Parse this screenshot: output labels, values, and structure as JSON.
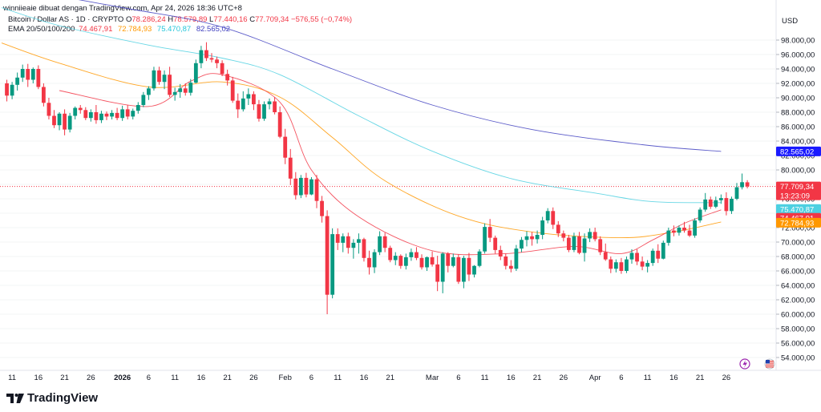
{
  "header": {
    "watermark": "winniieaie dibuat dengan TradingView.com, Apr 24, 2026 18:36 UTC+8",
    "symbol": "Bitcoin / Dollar AS · 1D · CRYPTO",
    "open_label": "O",
    "open": "78.286,24",
    "high_label": "H",
    "high": "78.579,89",
    "low_label": "L",
    "low": "77.440,16",
    "close_label": "C",
    "close": "77.709,34",
    "change": "−576,55 (−0,74%)",
    "ema_label": "EMA 20/50/100/200",
    "ema20": "74.467,91",
    "ema50": "72.784,93",
    "ema100": "75.470,87",
    "ema200": "82.565,02"
  },
  "currency": "USD",
  "footer": {
    "brand": "TradingView"
  },
  "colors": {
    "up": "#089981",
    "down": "#f23645",
    "ema20": "#f23645",
    "ema50": "#ff9800",
    "ema100": "#4dd0e1",
    "ema200": "#3f3fbf",
    "ema200_tag": "#1a1aff"
  },
  "price_tags": {
    "last_price": "77.709,34",
    "countdown": "13:23:09",
    "ema100": "75.470,87",
    "ema20": "74.467,91",
    "ema50": "72.784,93",
    "ema200": "82.565,02"
  },
  "chart_data": {
    "type": "candlestick",
    "title": "Bitcoin / Dollar AS · 1D · CRYPTO",
    "interval": "1D",
    "y_axis": {
      "unit": "USD",
      "range": [
        52000,
        100000
      ],
      "ticks": [
        54000,
        56000,
        58000,
        60000,
        62000,
        64000,
        66000,
        68000,
        70000,
        72000,
        74000,
        76000,
        78000,
        80000,
        82000,
        84000,
        86000,
        88000,
        90000,
        92000,
        94000,
        96000,
        98000
      ],
      "tick_labels": [
        "54.000,00",
        "56.000,00",
        "58.000,00",
        "60.000,00",
        "62.000,00",
        "64.000,00",
        "66.000,00",
        "68.000,00",
        "70.000,00",
        "72.000,00",
        "74.000,00",
        "76.000,00",
        "78.000,00",
        "80.000,00",
        "82.000,00",
        "84.000,00",
        "86.000,00",
        "88.000,00",
        "90.000,00",
        "92.000,00",
        "94.000,00",
        "96.000,00",
        "98.000,00"
      ]
    },
    "x_axis": {
      "first_date": "2025-12-09",
      "last_date": "2026-04-26",
      "ticks": [
        {
          "date": "2025-12-11",
          "label": "11"
        },
        {
          "date": "2025-12-16",
          "label": "16"
        },
        {
          "date": "2025-12-21",
          "label": "21"
        },
        {
          "date": "2025-12-26",
          "label": "26"
        },
        {
          "date": "2026-01-01",
          "label": "2026",
          "bold": true
        },
        {
          "date": "2026-01-06",
          "label": "6"
        },
        {
          "date": "2026-01-11",
          "label": "11"
        },
        {
          "date": "2026-01-16",
          "label": "16"
        },
        {
          "date": "2026-01-21",
          "label": "21"
        },
        {
          "date": "2026-01-26",
          "label": "26"
        },
        {
          "date": "2026-02-01",
          "label": "Feb"
        },
        {
          "date": "2026-02-06",
          "label": "6"
        },
        {
          "date": "2026-02-11",
          "label": "11"
        },
        {
          "date": "2026-02-16",
          "label": "16"
        },
        {
          "date": "2026-02-21",
          "label": "21"
        },
        {
          "date": "2026-03-01",
          "label": "Mar"
        },
        {
          "date": "2026-03-06",
          "label": "6"
        },
        {
          "date": "2026-03-11",
          "label": "11"
        },
        {
          "date": "2026-03-16",
          "label": "16"
        },
        {
          "date": "2026-03-21",
          "label": "21"
        },
        {
          "date": "2026-03-26",
          "label": "26"
        },
        {
          "date": "2026-04-01",
          "label": "Apr"
        },
        {
          "date": "2026-04-06",
          "label": "6"
        },
        {
          "date": "2026-04-11",
          "label": "11"
        },
        {
          "date": "2026-04-16",
          "label": "16"
        },
        {
          "date": "2026-04-21",
          "label": "21"
        },
        {
          "date": "2026-04-26",
          "label": "26"
        }
      ]
    },
    "first_candle_date": "2025-12-10",
    "candles_ohlc": [
      [
        92000,
        92500,
        89500,
        90300
      ],
      [
        90300,
        92200,
        89800,
        91800
      ],
      [
        91800,
        93500,
        91000,
        92800
      ],
      [
        92800,
        94600,
        92200,
        94000
      ],
      [
        94000,
        94700,
        91500,
        92500
      ],
      [
        92500,
        94200,
        92000,
        94000
      ],
      [
        94000,
        94500,
        91200,
        91500
      ],
      [
        91500,
        92000,
        88800,
        89300
      ],
      [
        89300,
        90000,
        87000,
        87500
      ],
      [
        87500,
        88300,
        85800,
        86200
      ],
      [
        86200,
        88000,
        85500,
        87800
      ],
      [
        87800,
        88400,
        84800,
        85600
      ],
      [
        85600,
        87900,
        85200,
        87500
      ],
      [
        87500,
        88800,
        87000,
        88600
      ],
      [
        88600,
        89000,
        87800,
        88300
      ],
      [
        88300,
        88700,
        86900,
        87200
      ],
      [
        87200,
        88400,
        86700,
        88000
      ],
      [
        88000,
        89000,
        86400,
        86900
      ],
      [
        86900,
        88200,
        86500,
        87800
      ],
      [
        87800,
        88100,
        86900,
        87400
      ],
      [
        87400,
        88300,
        87000,
        87900
      ],
      [
        87900,
        88600,
        86900,
        87200
      ],
      [
        87200,
        88900,
        86800,
        88400
      ],
      [
        88400,
        89000,
        87000,
        87400
      ],
      [
        87400,
        88500,
        87000,
        88200
      ],
      [
        88200,
        89400,
        87800,
        89000
      ],
      [
        89000,
        90800,
        88700,
        90400
      ],
      [
        90400,
        91600,
        89700,
        91300
      ],
      [
        91300,
        94300,
        91000,
        93800
      ],
      [
        93800,
        94300,
        91800,
        92200
      ],
      [
        92200,
        93800,
        91200,
        93200
      ],
      [
        93200,
        94300,
        90100,
        90400
      ],
      [
        90400,
        91400,
        89600,
        90800
      ],
      [
        90800,
        91900,
        90000,
        91300
      ],
      [
        91300,
        92000,
        90300,
        90700
      ],
      [
        90700,
        92600,
        90300,
        92100
      ],
      [
        92100,
        95300,
        92000,
        94800
      ],
      [
        94800,
        97200,
        94100,
        96600
      ],
      [
        96600,
        97700,
        95100,
        95500
      ],
      [
        95500,
        96200,
        94900,
        95300
      ],
      [
        95300,
        95700,
        94100,
        94800
      ],
      [
        94800,
        95200,
        93000,
        93300
      ],
      [
        93300,
        93900,
        91700,
        92400
      ],
      [
        92400,
        92900,
        89300,
        89600
      ],
      [
        89600,
        90600,
        87200,
        88400
      ],
      [
        88400,
        90900,
        88100,
        89900
      ],
      [
        89900,
        91300,
        89000,
        90500
      ],
      [
        90500,
        90900,
        88300,
        89100
      ],
      [
        89100,
        89700,
        86700,
        87100
      ],
      [
        87100,
        89500,
        86800,
        89100
      ],
      [
        89100,
        89900,
        88400,
        89500
      ],
      [
        89500,
        90100,
        87700,
        88000
      ],
      [
        88000,
        88800,
        84400,
        84600
      ],
      [
        84600,
        85700,
        80800,
        81700
      ],
      [
        81700,
        82900,
        77900,
        78800
      ],
      [
        78800,
        79700,
        75900,
        76500
      ],
      [
        76500,
        79300,
        76100,
        78900
      ],
      [
        78900,
        79600,
        76200,
        76600
      ],
      [
        76600,
        79000,
        76500,
        78700
      ],
      [
        78700,
        79300,
        74700,
        75700
      ],
      [
        75700,
        76400,
        72700,
        73600
      ],
      [
        73600,
        74400,
        60000,
        62700
      ],
      [
        62700,
        71900,
        62200,
        71100
      ],
      [
        71100,
        71900,
        68900,
        69900
      ],
      [
        69900,
        71200,
        68600,
        70800
      ],
      [
        70800,
        71300,
        68400,
        69200
      ],
      [
        69200,
        70400,
        67700,
        69900
      ],
      [
        69900,
        71200,
        68400,
        70400
      ],
      [
        70400,
        70600,
        67300,
        67800
      ],
      [
        67800,
        68800,
        65500,
        66500
      ],
      [
        66500,
        69000,
        65700,
        68600
      ],
      [
        68600,
        71500,
        68200,
        70800
      ],
      [
        70800,
        71300,
        68600,
        69200
      ],
      [
        69200,
        69500,
        67200,
        67500
      ],
      [
        67500,
        68600,
        66800,
        68100
      ],
      [
        68100,
        68300,
        66300,
        66700
      ],
      [
        66700,
        68400,
        66200,
        67900
      ],
      [
        67900,
        69100,
        67400,
        68600
      ],
      [
        68600,
        69300,
        67500,
        67800
      ],
      [
        67800,
        68300,
        66200,
        66500
      ],
      [
        66500,
        68000,
        66000,
        67900
      ],
      [
        67900,
        68700,
        66600,
        66900
      ],
      [
        66900,
        68100,
        63200,
        64500
      ],
      [
        64500,
        68600,
        62900,
        68400
      ],
      [
        68400,
        68600,
        65800,
        66700
      ],
      [
        66700,
        68400,
        66500,
        67900
      ],
      [
        67900,
        68300,
        64200,
        64500
      ],
      [
        64500,
        68100,
        63600,
        67800
      ],
      [
        67800,
        68500,
        64600,
        65500
      ],
      [
        65500,
        66800,
        65100,
        66700
      ],
      [
        66700,
        69000,
        66500,
        68700
      ],
      [
        68700,
        72600,
        68400,
        72100
      ],
      [
        72100,
        73200,
        70000,
        70600
      ],
      [
        70600,
        70900,
        68400,
        68900
      ],
      [
        68900,
        69500,
        67500,
        68000
      ],
      [
        68000,
        68400,
        66200,
        66700
      ],
      [
        66700,
        67500,
        65800,
        66300
      ],
      [
        66300,
        69600,
        66000,
        69100
      ],
      [
        69100,
        70700,
        68600,
        70300
      ],
      [
        70300,
        71500,
        69400,
        70800
      ],
      [
        70800,
        71400,
        69500,
        70400
      ],
      [
        70400,
        71600,
        69800,
        71000
      ],
      [
        71000,
        73500,
        70400,
        73000
      ],
      [
        73000,
        74700,
        72600,
        74300
      ],
      [
        74300,
        74800,
        71800,
        72400
      ],
      [
        72400,
        72900,
        70700,
        71200
      ],
      [
        71200,
        71600,
        70100,
        70600
      ],
      [
        70600,
        71000,
        68600,
        68900
      ],
      [
        68900,
        71300,
        68600,
        70800
      ],
      [
        70800,
        71400,
        68300,
        68500
      ],
      [
        68500,
        71200,
        67300,
        70500
      ],
      [
        70500,
        71900,
        70000,
        71400
      ],
      [
        71400,
        72000,
        70100,
        70400
      ],
      [
        70400,
        70800,
        68200,
        68600
      ],
      [
        68600,
        69800,
        67400,
        67600
      ],
      [
        67600,
        68000,
        65700,
        66300
      ],
      [
        66300,
        67600,
        65800,
        67200
      ],
      [
        67200,
        67800,
        65600,
        66000
      ],
      [
        66000,
        68000,
        65700,
        67600
      ],
      [
        67600,
        69000,
        67000,
        68500
      ],
      [
        68500,
        69000,
        66800,
        67300
      ],
      [
        67300,
        68000,
        66100,
        66600
      ],
      [
        66600,
        67500,
        65800,
        67100
      ],
      [
        67100,
        69100,
        66700,
        68800
      ],
      [
        68800,
        69700,
        67100,
        67700
      ],
      [
        67700,
        70200,
        67600,
        69900
      ],
      [
        69900,
        72000,
        69500,
        71600
      ],
      [
        71600,
        72300,
        70800,
        71300
      ],
      [
        71300,
        72300,
        70900,
        72000
      ],
      [
        72000,
        72800,
        71300,
        71600
      ],
      [
        71600,
        72400,
        70700,
        70900
      ],
      [
        70900,
        73300,
        70600,
        73000
      ],
      [
        73000,
        74800,
        72700,
        74500
      ],
      [
        74500,
        76800,
        74200,
        75900
      ],
      [
        75900,
        76300,
        74600,
        74900
      ],
      [
        74900,
        76300,
        74700,
        75800
      ],
      [
        75800,
        76600,
        75300,
        76100
      ],
      [
        76100,
        76900,
        73700,
        74300
      ],
      [
        74300,
        76300,
        73900,
        76000
      ],
      [
        76000,
        78200,
        75800,
        77600
      ],
      [
        77600,
        79500,
        77300,
        78300
      ],
      [
        78286,
        78580,
        77440,
        77709
      ]
    ],
    "ema20_approx": [
      {
        "date": "2025-12-20",
        "value": 91000
      },
      {
        "date": "2026-01-06",
        "value": 88800
      },
      {
        "date": "2026-01-14",
        "value": 92300
      },
      {
        "date": "2026-01-20",
        "value": 93200
      },
      {
        "date": "2026-01-31",
        "value": 89400
      },
      {
        "date": "2026-02-06",
        "value": 80000
      },
      {
        "date": "2026-02-15",
        "value": 73500
      },
      {
        "date": "2026-03-01",
        "value": 68800
      },
      {
        "date": "2026-03-15",
        "value": 68400
      },
      {
        "date": "2026-03-28",
        "value": 69400
      },
      {
        "date": "2026-04-06",
        "value": 68400
      },
      {
        "date": "2026-04-12",
        "value": 70300
      },
      {
        "date": "2026-04-18",
        "value": 72600
      },
      {
        "date": "2026-04-25",
        "value": 74467.91
      }
    ],
    "ema50_approx": [
      {
        "date": "2025-12-09",
        "value": 97600
      },
      {
        "date": "2025-12-20",
        "value": 94800
      },
      {
        "date": "2026-01-06",
        "value": 91500
      },
      {
        "date": "2026-01-20",
        "value": 92200
      },
      {
        "date": "2026-01-31",
        "value": 90100
      },
      {
        "date": "2026-02-10",
        "value": 84500
      },
      {
        "date": "2026-02-20",
        "value": 78500
      },
      {
        "date": "2026-03-06",
        "value": 73600
      },
      {
        "date": "2026-03-20",
        "value": 71400
      },
      {
        "date": "2026-04-06",
        "value": 70600
      },
      {
        "date": "2026-04-16",
        "value": 71400
      },
      {
        "date": "2026-04-25",
        "value": 72784.93
      }
    ],
    "ema100_approx": [
      {
        "date": "2025-12-09",
        "value": 102500
      },
      {
        "date": "2025-12-20",
        "value": 100000
      },
      {
        "date": "2026-01-06",
        "value": 97300
      },
      {
        "date": "2026-01-20",
        "value": 95500
      },
      {
        "date": "2026-01-31",
        "value": 93200
      },
      {
        "date": "2026-02-15",
        "value": 87500
      },
      {
        "date": "2026-03-01",
        "value": 82600
      },
      {
        "date": "2026-03-16",
        "value": 78800
      },
      {
        "date": "2026-04-01",
        "value": 76800
      },
      {
        "date": "2026-04-12",
        "value": 75600
      },
      {
        "date": "2026-04-25",
        "value": 75470.87
      }
    ],
    "ema200_approx": [
      {
        "date": "2025-12-09",
        "value": 105500
      },
      {
        "date": "2026-01-01",
        "value": 102500
      },
      {
        "date": "2026-01-20",
        "value": 99800
      },
      {
        "date": "2026-02-10",
        "value": 94000
      },
      {
        "date": "2026-03-01",
        "value": 89000
      },
      {
        "date": "2026-03-20",
        "value": 85600
      },
      {
        "date": "2026-04-10",
        "value": 83500
      },
      {
        "date": "2026-04-25",
        "value": 82565.02
      }
    ],
    "last_price": 77709.34
  }
}
